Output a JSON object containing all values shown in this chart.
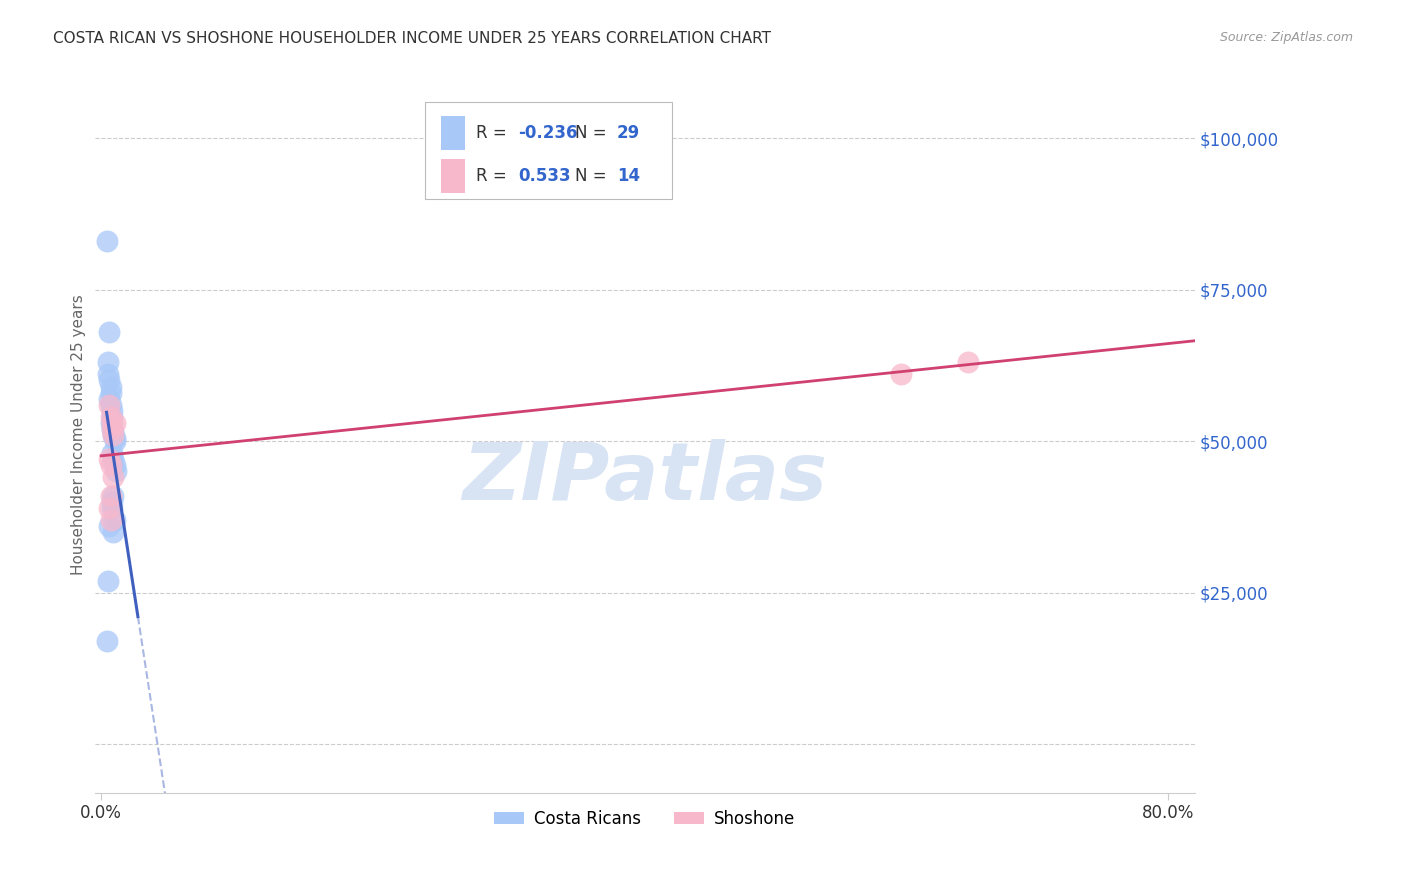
{
  "title": "COSTA RICAN VS SHOSHONE HOUSEHOLDER INCOME UNDER 25 YEARS CORRELATION CHART",
  "source": "Source: ZipAtlas.com",
  "ylabel": "Householder Income Under 25 years",
  "legend_r_blue": "-0.236",
  "legend_n_blue": "29",
  "legend_r_pink": "0.533",
  "legend_n_pink": "14",
  "blue_scatter_color": "#a8c8f8",
  "pink_scatter_color": "#f8b8cc",
  "blue_line_color": "#4060c0",
  "pink_line_color": "#d04070",
  "watermark_text": "ZIPatlas",
  "watermark_color": "#d8e4f4",
  "background_color": "#ffffff",
  "grid_color": "#cccccc",
  "right_axis_color": "#3366cc",
  "costa_ricans_x": [
    0.004,
    0.006,
    0.005,
    0.005,
    0.006,
    0.007,
    0.007,
    0.006,
    0.007,
    0.008,
    0.008,
    0.007,
    0.008,
    0.009,
    0.009,
    0.01,
    0.01,
    0.008,
    0.009,
    0.01,
    0.011,
    0.009,
    0.008,
    0.008,
    0.01,
    0.009,
    0.006,
    0.005,
    0.004
  ],
  "costa_ricans_y": [
    83000,
    68000,
    63000,
    61000,
    60000,
    59000,
    58000,
    57000,
    56000,
    55000,
    54000,
    53000,
    52000,
    51500,
    51000,
    50500,
    50000,
    48000,
    47000,
    46000,
    45000,
    41000,
    40000,
    39000,
    37000,
    35000,
    36000,
    27000,
    17000
  ],
  "shoshone_x": [
    0.006,
    0.007,
    0.008,
    0.008,
    0.009,
    0.01,
    0.006,
    0.007,
    0.009,
    0.007,
    0.006,
    0.007,
    0.6,
    0.65
  ],
  "shoshone_y": [
    56000,
    54000,
    53000,
    52000,
    51000,
    53000,
    47000,
    46000,
    44000,
    41000,
    39000,
    37000,
    61000,
    63000
  ],
  "xlim_low": -0.005,
  "xlim_high": 0.82,
  "ylim_low": -8000,
  "ylim_high": 110000,
  "xtick_positions": [
    0.0,
    0.8
  ],
  "xtick_labels": [
    "0.0%",
    "80.0%"
  ],
  "ytick_positions": [
    0,
    25000,
    50000,
    75000,
    100000
  ],
  "ytick_labels": [
    "",
    "$25,000",
    "$50,000",
    "$75,000",
    "$100,000"
  ]
}
